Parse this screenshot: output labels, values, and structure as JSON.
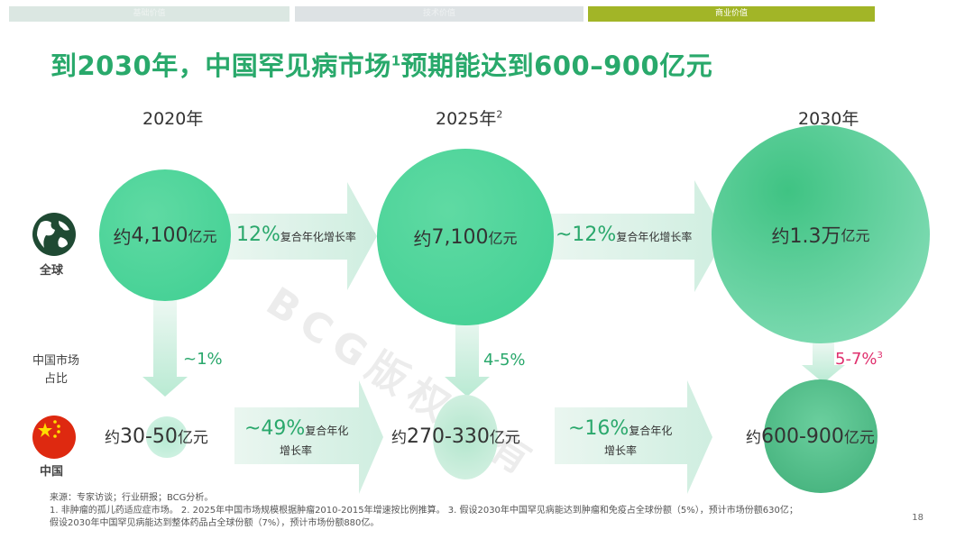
{
  "tabs": [
    "基础价值",
    "技术价值",
    "商业价值"
  ],
  "title": "到2030年，中国罕见病市场",
  "title_sup": "1",
  "title_tail": "预期能达到600–900亿元",
  "years": [
    {
      "label": "2020年",
      "sup": ""
    },
    {
      "label": "2025年",
      "sup": "2"
    },
    {
      "label": "2030年",
      "sup": ""
    }
  ],
  "row_labels": {
    "global": "全球",
    "china": "中国",
    "share_line1": "中国市场",
    "share_line2": "占比"
  },
  "global_values": [
    {
      "prefix": "约",
      "num": "4,100",
      "unit": "亿元"
    },
    {
      "prefix": "约",
      "num": "7,100",
      "unit": "亿元"
    },
    {
      "prefix": "约",
      "num": "1.3万",
      "unit": "亿元"
    }
  ],
  "global_rates": [
    {
      "pct": "12%",
      "text": "复合年化增长率"
    },
    {
      "pct": "~12%",
      "text": "复合年化增长率"
    }
  ],
  "shares": [
    {
      "value": "~1%",
      "sup": ""
    },
    {
      "value": "4-5%",
      "sup": ""
    },
    {
      "value": "5-7%",
      "sup": "3"
    }
  ],
  "china_values": [
    {
      "prefix": "约",
      "num": "30-50",
      "unit": "亿元"
    },
    {
      "prefix": "约",
      "num": "270-330",
      "unit": "亿元"
    },
    {
      "prefix": "约",
      "num": "600-900",
      "unit": "亿元"
    }
  ],
  "china_rates": [
    {
      "pct": "~49%",
      "text1": "复合年化",
      "text2": "增长率"
    },
    {
      "pct": "~16%",
      "text1": "复合年化",
      "text2": "增长率"
    }
  ],
  "source": {
    "line1": "来源：专家访谈；行业研报；BCG分析。",
    "line2": "1. 非肿瘤的孤儿药适应症市场。 2. 2025年中国市场规模根据肿瘤2010-2015年增速按比例推算。 3. 假设2030年中国罕见病能达到肿瘤和免疫占全球份额（5%），预计市场份额630亿；",
    "line3": "假设2030年中国罕见病能达到整体药品占全球份额（7%），预计市场份额880亿。"
  },
  "page_number": "18",
  "watermark": "BCG版权所有",
  "colors": {
    "accent": "#29a96b",
    "highlight": "#e0306e",
    "tab_active": "#a2b527"
  }
}
